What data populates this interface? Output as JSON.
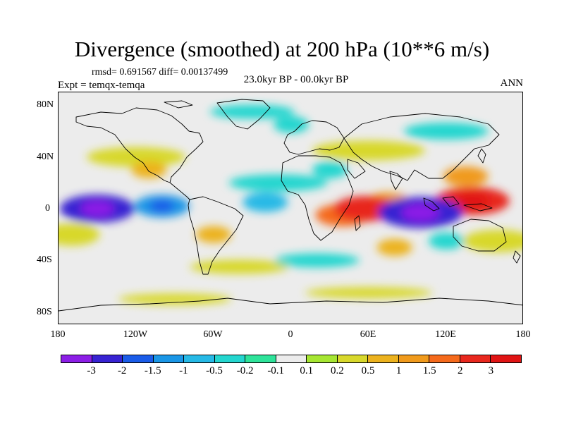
{
  "title": "Divergence (smoothed) at 200 hPa (10**6 m/s)",
  "stats": "rmsd= 0.691567 diff= 0.00137499",
  "experiment": "Expt = temqx-temqa",
  "period": "23.0kyr BP - 00.0kyr BP",
  "season": "ANN",
  "y_axis_ticks": [
    "80N",
    "40N",
    "0",
    "40S",
    "80S"
  ],
  "x_axis_ticks": [
    "180",
    "120W",
    "60W",
    "0",
    "60E",
    "120E",
    "180"
  ],
  "colorbar": {
    "labels": [
      "-3",
      "-2",
      "-1.5",
      "-1",
      "-0.5",
      "-0.2",
      "-0.1",
      "0.1",
      "0.2",
      "0.5",
      "1",
      "1.5",
      "2",
      "3"
    ],
    "colors": [
      "#8c1ee6",
      "#3723d2",
      "#1a5ce8",
      "#1a96e6",
      "#26b9e6",
      "#24d6cf",
      "#2ee39a",
      "#ececec",
      "#a6e632",
      "#d8d82c",
      "#ecb21e",
      "#f09a1c",
      "#f56a1c",
      "#e8281e",
      "#e01414"
    ]
  },
  "chart_data": {
    "type": "heatmap",
    "projection": "cylindrical equidistant (global)",
    "variable": "Divergence (smoothed) at 200 hPa",
    "units": "10**6 m/s",
    "lon_range": [
      -180,
      180
    ],
    "lat_range": [
      -90,
      90
    ],
    "contour_levels": [
      -3,
      -2,
      -1.5,
      -1,
      -0.5,
      -0.2,
      -0.1,
      0.1,
      0.2,
      0.5,
      1,
      1.5,
      2,
      3
    ],
    "features": [
      {
        "lon": -150,
        "lat": 0,
        "value": -2.5
      },
      {
        "lon": -100,
        "lat": 2,
        "value": -1.5
      },
      {
        "lon": 100,
        "lat": -3,
        "value": -3
      },
      {
        "lon": 58,
        "lat": 0,
        "value": 2
      },
      {
        "lon": 140,
        "lat": 6,
        "value": 2.5
      },
      {
        "lon": 75,
        "lat": 5,
        "value": 1
      },
      {
        "lon": 40,
        "lat": -5,
        "value": 1.5
      },
      {
        "lon": -20,
        "lat": 5,
        "value": -1
      },
      {
        "lon": 135,
        "lat": 25,
        "value": 1
      },
      {
        "lon": -110,
        "lat": 30,
        "value": 0.5
      },
      {
        "lon": 0,
        "lat": 65,
        "value": -0.5
      },
      {
        "lon": 120,
        "lat": -25,
        "value": -0.5
      },
      {
        "lon": -60,
        "lat": -20,
        "value": 0.5
      },
      {
        "lon": 80,
        "lat": -30,
        "value": 0.5
      },
      {
        "lon": 30,
        "lat": 30,
        "value": -0.5
      }
    ]
  }
}
